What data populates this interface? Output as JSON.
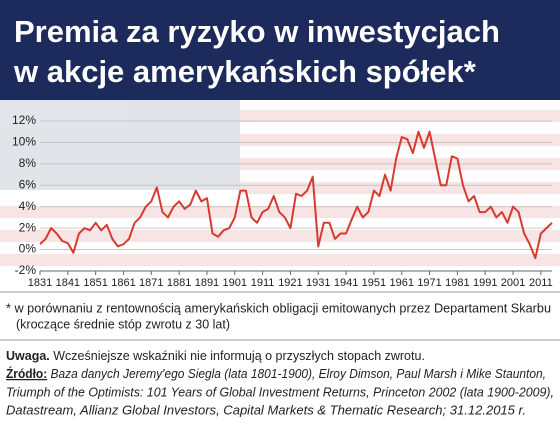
{
  "chart_data": {
    "type": "line",
    "title_lines": [
      "Premia za ryzyko w inwestycjach",
      "w akcje amerykańskich spółek*"
    ],
    "x": [
      1831,
      1833,
      1835,
      1837,
      1839,
      1841,
      1843,
      1845,
      1847,
      1849,
      1851,
      1853,
      1855,
      1857,
      1859,
      1861,
      1863,
      1865,
      1867,
      1869,
      1871,
      1873,
      1875,
      1877,
      1879,
      1881,
      1883,
      1885,
      1887,
      1889,
      1891,
      1893,
      1895,
      1897,
      1899,
      1901,
      1903,
      1905,
      1907,
      1909,
      1911,
      1913,
      1915,
      1917,
      1919,
      1921,
      1923,
      1925,
      1927,
      1929,
      1931,
      1933,
      1935,
      1937,
      1939,
      1941,
      1943,
      1945,
      1947,
      1949,
      1951,
      1953,
      1955,
      1957,
      1959,
      1961,
      1963,
      1965,
      1967,
      1969,
      1971,
      1973,
      1975,
      1977,
      1979,
      1981,
      1983,
      1985,
      1987,
      1989,
      1991,
      1993,
      1995,
      1997,
      1999,
      2001,
      2003,
      2005,
      2007,
      2009,
      2011,
      2013,
      2015
    ],
    "series": [
      {
        "color": "#d93a30",
        "values": [
          0.5,
          1.0,
          2.0,
          1.5,
          0.8,
          0.6,
          -0.3,
          1.5,
          2.0,
          1.8,
          2.5,
          1.8,
          2.3,
          1.0,
          0.3,
          0.5,
          1.0,
          2.5,
          3.0,
          4.0,
          4.5,
          5.8,
          3.5,
          3.0,
          4.0,
          4.5,
          3.8,
          4.2,
          5.5,
          4.5,
          4.8,
          1.5,
          1.2,
          1.8,
          2.0,
          3.0,
          5.5,
          5.5,
          3.0,
          2.5,
          3.5,
          3.8,
          5.0,
          3.5,
          3.0,
          2.0,
          5.2,
          5.0,
          5.5,
          6.8,
          0.3,
          2.5,
          2.5,
          1.0,
          1.5,
          1.5,
          2.8,
          4.0,
          3.0,
          3.5,
          5.5,
          5.0,
          7.0,
          5.5,
          8.5,
          10.5,
          10.3,
          9.0,
          11.0,
          9.5,
          11.0,
          8.5,
          6.0,
          6.0,
          8.7,
          8.5,
          6.0,
          4.5,
          5.0,
          3.5,
          3.5,
          4.0,
          3.0,
          3.5,
          2.5,
          4.0,
          3.5,
          1.5,
          0.5,
          -0.8,
          1.5,
          2.0,
          2.5
        ]
      }
    ],
    "xlim": [
      1831,
      2015
    ],
    "xticks": [
      1831,
      1841,
      1851,
      1861,
      1871,
      1881,
      1891,
      1901,
      1911,
      1921,
      1931,
      1941,
      1951,
      1961,
      1971,
      1981,
      1991,
      2001,
      2011
    ],
    "ylim": [
      -2,
      12
    ],
    "yticks": [
      {
        "value": -2,
        "label": "-2%"
      },
      {
        "value": 0,
        "label": "0%"
      },
      {
        "value": 2,
        "label": "2%"
      },
      {
        "value": 4,
        "label": "4%"
      },
      {
        "value": 6,
        "label": "6%"
      },
      {
        "value": 8,
        "label": "8%"
      },
      {
        "value": 10,
        "label": "10%"
      },
      {
        "value": 12,
        "label": "12%"
      }
    ],
    "grid": true,
    "footnote_lines": [
      "* w porównaniu z rentownością amerykańskich obligacji emitowanych przez Departament Skarbu",
      "(kroczące średnie stóp zwrotu z 30 lat)"
    ],
    "note_label": "Uwaga.",
    "note_text": "Wcześniejsze wskaźniki nie informują o przyszłych stopach zwrotu.",
    "source_label": "Źródło:",
    "source_lines": [
      "Baza danych Jeremy'ego Siegla (lata 1801-1900), Elroy Dimson, Paul Marsh i Mike Staunton,",
      "Triumph of the Optimists: 101 Years of Global Investment Returns, Princeton 2002 (lata 1900-2009),",
      "Datastream, Allianz Global Investors, Capital Markets & Thematic Research; 31.12.2015 r."
    ]
  }
}
